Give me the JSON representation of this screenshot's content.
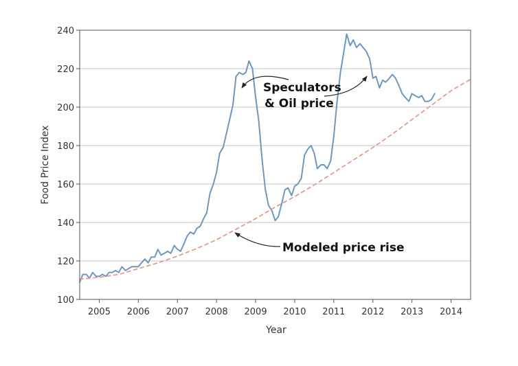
{
  "chart_data": {
    "type": "line",
    "xlabel": "Year",
    "ylabel": "Food Price Index",
    "xlim": [
      2004.5,
      2014.5
    ],
    "ylim": [
      100,
      240
    ],
    "y_ticks": [
      100,
      120,
      140,
      160,
      180,
      200,
      220,
      240
    ],
    "x_tick_labels": [
      "2005",
      "2006",
      "2007",
      "2008",
      "2009",
      "2010",
      "2011",
      "2012",
      "2013",
      "2014"
    ],
    "grid": "horizontal",
    "series": [
      {
        "role": "observed",
        "style": "solid",
        "color": "#6f97bd",
        "x": [
          2004.5,
          2004.58,
          2004.67,
          2004.75,
          2004.83,
          2004.92,
          2005.0,
          2005.08,
          2005.17,
          2005.25,
          2005.33,
          2005.42,
          2005.5,
          2005.58,
          2005.67,
          2005.75,
          2005.83,
          2005.92,
          2006.0,
          2006.08,
          2006.17,
          2006.25,
          2006.33,
          2006.42,
          2006.5,
          2006.58,
          2006.67,
          2006.75,
          2006.83,
          2006.92,
          2007.0,
          2007.08,
          2007.17,
          2007.25,
          2007.33,
          2007.42,
          2007.5,
          2007.58,
          2007.67,
          2007.75,
          2007.83,
          2007.92,
          2008.0,
          2008.08,
          2008.17,
          2008.25,
          2008.33,
          2008.42,
          2008.5,
          2008.58,
          2008.67,
          2008.75,
          2008.83,
          2008.92,
          2009.0,
          2009.08,
          2009.17,
          2009.25,
          2009.33,
          2009.42,
          2009.5,
          2009.58,
          2009.67,
          2009.75,
          2009.83,
          2009.92,
          2010.0,
          2010.08,
          2010.17,
          2010.25,
          2010.33,
          2010.42,
          2010.5,
          2010.58,
          2010.67,
          2010.75,
          2010.83,
          2010.92,
          2011.0,
          2011.08,
          2011.17,
          2011.25,
          2011.33,
          2011.42,
          2011.5,
          2011.58,
          2011.67,
          2011.75,
          2011.83,
          2011.92,
          2012.0,
          2012.08,
          2012.17,
          2012.25,
          2012.33,
          2012.42,
          2012.5,
          2012.58,
          2012.67,
          2012.75,
          2012.83,
          2012.92,
          2013.0,
          2013.08,
          2013.17,
          2013.25,
          2013.33,
          2013.42,
          2013.5,
          2013.58
        ],
        "y": [
          109,
          113,
          113,
          111,
          114,
          112,
          112,
          113,
          112,
          114,
          114,
          115,
          114,
          117,
          115,
          116,
          117,
          117,
          117,
          119,
          121,
          119,
          122,
          122,
          126,
          123,
          124,
          125,
          124,
          128,
          126,
          125,
          129,
          133,
          135,
          134,
          137,
          138,
          142,
          145,
          155,
          160,
          166,
          176,
          179,
          186,
          193,
          201,
          216,
          218,
          217,
          218,
          224,
          220,
          205,
          193,
          172,
          157,
          149,
          146,
          141,
          143,
          150,
          157,
          158,
          154,
          159,
          160,
          163,
          175,
          178,
          180,
          176,
          168,
          170,
          170,
          168,
          172,
          185,
          202,
          218,
          228,
          238,
          232,
          235,
          231,
          233,
          231,
          229,
          225,
          215,
          216,
          210,
          214,
          213,
          215,
          217,
          215,
          211,
          207,
          205,
          203,
          207,
          206,
          205,
          206,
          203,
          203,
          204,
          207
        ]
      },
      {
        "role": "modeled",
        "style": "dashed",
        "color": "#e49a90",
        "x": [
          2004.5,
          2005.0,
          2005.5,
          2006.0,
          2006.5,
          2007.0,
          2007.5,
          2008.0,
          2008.5,
          2009.0,
          2009.5,
          2010.0,
          2010.5,
          2011.0,
          2011.5,
          2012.0,
          2012.5,
          2013.0,
          2013.5,
          2014.0,
          2014.5
        ],
        "y": [
          110.5,
          111.5,
          113,
          116,
          119,
          122.5,
          126.5,
          131,
          136.5,
          142,
          148,
          153.5,
          159.5,
          166,
          172.5,
          179,
          186,
          193.5,
          201,
          208.5,
          214.5
        ]
      }
    ],
    "annotations": [
      {
        "line1": "Speculators",
        "line2": "& Oil price",
        "arrows_to": [
          [
            2008.67,
            218
          ],
          [
            2012.08,
            222
          ]
        ]
      },
      {
        "line1": "Modeled price rise",
        "arrows_to": [
          [
            2008.5,
            136
          ]
        ]
      }
    ]
  }
}
